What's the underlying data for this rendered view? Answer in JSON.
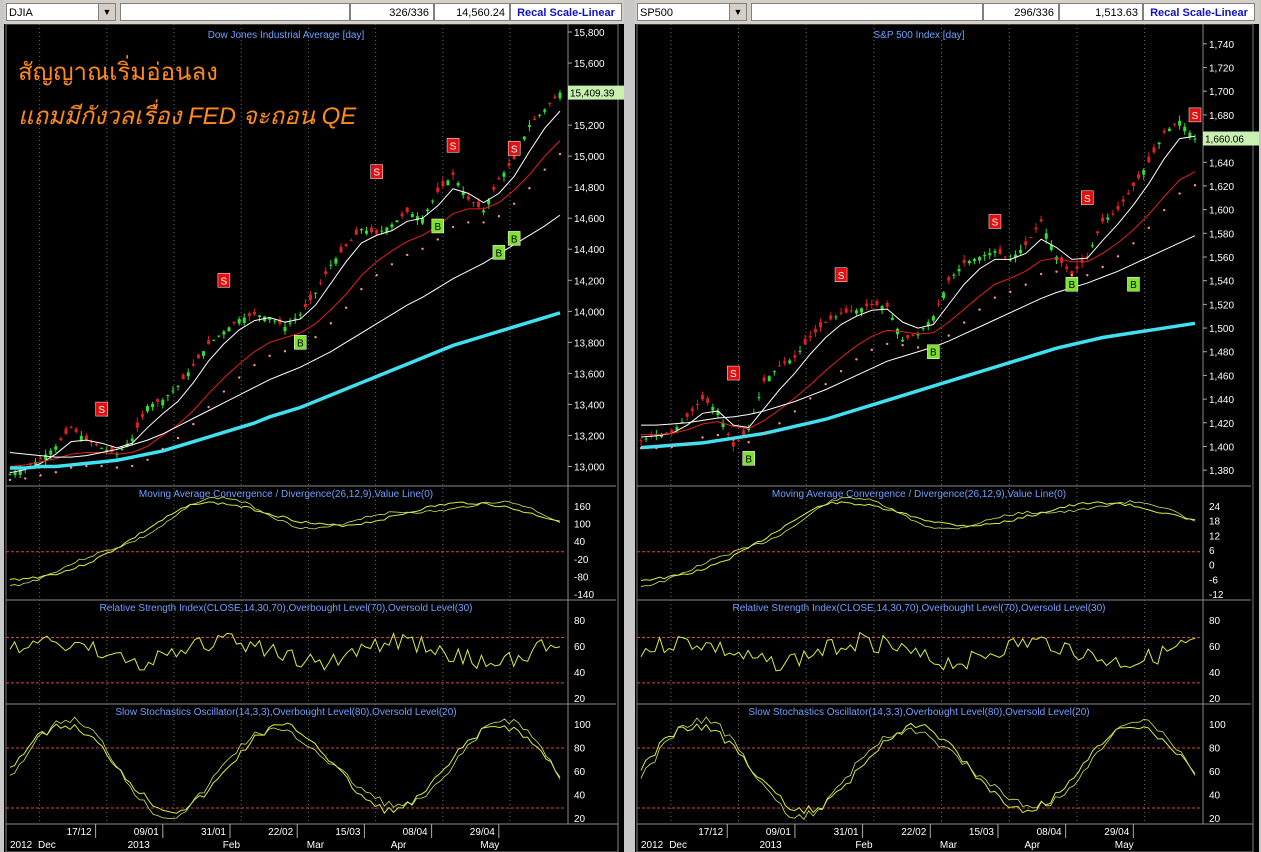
{
  "charts": [
    {
      "symbol": "DJIA",
      "counter": "326/336",
      "last_value": "14,560.24",
      "recal_label": "Recal Scale-Linear",
      "title": "Dow Jones Industrial Average [day]",
      "overlay_text": [
        "สัญญาณเริ่มอ่อนลง",
        "แถมมีกังวลเรื่อง FED จะถอน QE"
      ],
      "current_price_label": "15,409.39",
      "y_ticks": [
        "15,800",
        "15,600",
        "15,400",
        "15,200",
        "15,000",
        "14,800",
        "14,600",
        "14,400",
        "14,200",
        "14,000",
        "13,800",
        "13,600",
        "13,400",
        "13,200",
        "13,000"
      ],
      "macd_title": "Moving Average Convergence / Divergence(26,12,9),Value Line(0)",
      "macd_ticks": [
        "160",
        "100",
        "40",
        "-20",
        "-80",
        "-140"
      ],
      "rsi_title": "Relative Strength Index(CLOSE,14,30,70),Overbought Level(70),Oversold Level(30)",
      "rsi_ticks": [
        "80",
        "60",
        "40",
        "20"
      ],
      "stoch_title": "Slow Stochastics Oscillator(14,3,3),Overbought Level(80),Oversold Level(20)",
      "stoch_ticks": [
        "100",
        "80",
        "60",
        "40",
        "20"
      ],
      "x_dates": [
        "17/12",
        "09/01",
        "31/01",
        "22/02",
        "15/03",
        "08/04",
        "29/04"
      ],
      "x_months": [
        "2012",
        "Dec",
        "2013",
        "Feb",
        "Mar",
        "Apr",
        "May"
      ]
    },
    {
      "symbol": "SP500",
      "counter": "296/336",
      "last_value": "1,513.63",
      "recal_label": "Recal Scale-Linear",
      "title": "S&P 500 Index [day]",
      "current_price_label": "1,660.06",
      "y_ticks": [
        "1,740",
        "1,720",
        "1,700",
        "1,680",
        "1,660",
        "1,640",
        "1,620",
        "1,600",
        "1,580",
        "1,560",
        "1,540",
        "1,520",
        "1,500",
        "1,480",
        "1,460",
        "1,440",
        "1,420",
        "1,400",
        "1,380"
      ],
      "macd_title": "Moving Average Convergence / Divergence(26,12,9),Value Line(0)",
      "macd_ticks": [
        "24",
        "18",
        "12",
        "6",
        "0",
        "-6",
        "-12"
      ],
      "rsi_title": "Relative Strength Index(CLOSE,14,30,70),Overbought Level(70),Oversold Level(30)",
      "rsi_ticks": [
        "80",
        "60",
        "40",
        "20"
      ],
      "stoch_title": "Slow Stochastics Oscillator(14,3,3),Overbought Level(80),Oversold Level(20)",
      "stoch_ticks": [
        "100",
        "80",
        "60",
        "40",
        "20"
      ],
      "x_dates": [
        "17/12",
        "09/01",
        "31/01",
        "22/02",
        "15/03",
        "08/04",
        "29/04"
      ],
      "x_months": [
        "2012",
        "Dec",
        "2013",
        "Feb",
        "Mar",
        "Apr",
        "May"
      ]
    }
  ],
  "chart_data": [
    {
      "type": "line",
      "title": "Dow Jones Industrial Average [day]",
      "ylim": [
        12900,
        15800
      ],
      "series": [
        {
          "values": [
            12950,
            12990,
            13050,
            13130,
            13250,
            13170,
            13120,
            13080,
            13180,
            13390,
            13430,
            13520,
            13650,
            13790,
            13870,
            13950,
            13980,
            13960,
            13900,
            13980,
            14120,
            14300,
            14420,
            14530,
            14500,
            14560,
            14640,
            14600,
            14770,
            14880,
            14720,
            14650,
            14850,
            14980,
            15200,
            15300,
            15409
          ]
        },
        {
          "values": [
            12960,
            12980,
            13020,
            13080,
            13160,
            13170,
            13150,
            13120,
            13150,
            13250,
            13340,
            13420,
            13540,
            13680,
            13790,
            13880,
            13940,
            13960,
            13930,
            13950,
            14040,
            14180,
            14320,
            14440,
            14490,
            14520,
            14580,
            14600,
            14680,
            14790,
            14760,
            14700,
            14760,
            14870,
            15030,
            15180,
            15290
          ]
        },
        {
          "values": [
            13000,
            13010,
            13030,
            13050,
            13080,
            13090,
            13090,
            13080,
            13090,
            13130,
            13200,
            13270,
            13360,
            13470,
            13570,
            13660,
            13740,
            13800,
            13830,
            13860,
            13920,
            14010,
            14110,
            14230,
            14320,
            14390,
            14450,
            14490,
            14550,
            14630,
            14660,
            14660,
            14700,
            14780,
            14880,
            15000,
            15100
          ]
        },
        {
          "values": [
            13090,
            13080,
            13070,
            13060,
            13060,
            13070,
            13090,
            13110,
            13140,
            13170,
            13210,
            13260,
            13310,
            13360,
            13410,
            13460,
            13510,
            13560,
            13600,
            13640,
            13690,
            13740,
            13800,
            13860,
            13920,
            13980,
            14040,
            14090,
            14150,
            14210,
            14260,
            14310,
            14370,
            14430,
            14490,
            14550,
            14620
          ]
        },
        {
          "values": [
            12990,
            12990,
            13000,
            13000,
            13010,
            13020,
            13030,
            13040,
            13060,
            13080,
            13100,
            13130,
            13160,
            13190,
            13220,
            13250,
            13280,
            13320,
            13350,
            13380,
            13420,
            13460,
            13500,
            13540,
            13580,
            13620,
            13660,
            13700,
            13740,
            13780,
            13810,
            13840,
            13870,
            13900,
            13930,
            13960,
            13990
          ]
        }
      ],
      "markers": [
        {
          "label": "S",
          "x": 6,
          "y": 13370
        },
        {
          "label": "S",
          "x": 14,
          "y": 14200
        },
        {
          "label": "B",
          "x": 19,
          "y": 13800
        },
        {
          "label": "S",
          "x": 24,
          "y": 14900
        },
        {
          "label": "B",
          "x": 28,
          "y": 14550
        },
        {
          "label": "S",
          "x": 29,
          "y": 15070
        },
        {
          "label": "B",
          "x": 32,
          "y": 14380
        },
        {
          "label": "S",
          "x": 33,
          "y": 15050
        },
        {
          "label": "B",
          "x": 33,
          "y": 14470
        }
      ]
    },
    {
      "type": "line",
      "title": "S&P 500 Index [day]",
      "ylim": [
        1370,
        1750
      ],
      "series": [
        {
          "values": [
            1405,
            1410,
            1412,
            1425,
            1440,
            1430,
            1400,
            1415,
            1455,
            1468,
            1475,
            1492,
            1505,
            1512,
            1515,
            1520,
            1518,
            1490,
            1495,
            1510,
            1540,
            1555,
            1560,
            1565,
            1558,
            1570,
            1590,
            1560,
            1545,
            1560,
            1590,
            1600,
            1620,
            1640,
            1665,
            1675,
            1660
          ]
        },
        {
          "values": [
            1408,
            1409,
            1411,
            1418,
            1428,
            1430,
            1418,
            1416,
            1432,
            1448,
            1462,
            1478,
            1492,
            1503,
            1510,
            1515,
            1516,
            1505,
            1500,
            1503,
            1520,
            1537,
            1550,
            1558,
            1558,
            1563,
            1575,
            1568,
            1558,
            1559,
            1574,
            1588,
            1604,
            1622,
            1643,
            1660,
            1662
          ]
        },
        {
          "values": [
            1410,
            1410,
            1411,
            1414,
            1419,
            1421,
            1417,
            1415,
            1422,
            1431,
            1441,
            1452,
            1464,
            1475,
            1485,
            1493,
            1498,
            1497,
            1495,
            1496,
            1505,
            1516,
            1527,
            1537,
            1542,
            1548,
            1557,
            1559,
            1556,
            1556,
            1563,
            1572,
            1583,
            1596,
            1611,
            1625,
            1632
          ]
        },
        {
          "values": [
            1418,
            1418,
            1419,
            1420,
            1422,
            1424,
            1425,
            1427,
            1430,
            1434,
            1438,
            1443,
            1448,
            1454,
            1460,
            1466,
            1472,
            1476,
            1480,
            1484,
            1489,
            1495,
            1501,
            1507,
            1513,
            1519,
            1525,
            1530,
            1534,
            1538,
            1543,
            1548,
            1554,
            1560,
            1566,
            1572,
            1578
          ]
        },
        {
          "values": [
            1399,
            1400,
            1401,
            1402,
            1403,
            1405,
            1407,
            1409,
            1411,
            1414,
            1417,
            1420,
            1423,
            1427,
            1431,
            1435,
            1439,
            1443,
            1447,
            1451,
            1455,
            1459,
            1463,
            1467,
            1471,
            1475,
            1479,
            1483,
            1486,
            1489,
            1492,
            1494,
            1496,
            1498,
            1500,
            1502,
            1504
          ]
        }
      ],
      "markers": [
        {
          "label": "S",
          "x": 6,
          "y": 1462
        },
        {
          "label": "B",
          "x": 7,
          "y": 1390
        },
        {
          "label": "S",
          "x": 13,
          "y": 1545
        },
        {
          "label": "B",
          "x": 19,
          "y": 1480
        },
        {
          "label": "S",
          "x": 23,
          "y": 1590
        },
        {
          "label": "B",
          "x": 28,
          "y": 1537
        },
        {
          "label": "S",
          "x": 29,
          "y": 1610
        },
        {
          "label": "B",
          "x": 32,
          "y": 1537
        },
        {
          "label": "S",
          "x": 36,
          "y": 1680
        }
      ]
    }
  ],
  "colors": {
    "price": "#30e030",
    "ma_fast": "#ffffff",
    "ma_mid": "#e02020",
    "ma_slow": "#ffffff",
    "ma_long": "#40e0f0",
    "osc": "#d0f040",
    "ref": "#e04040",
    "title": "#6fa0ff",
    "overlay": "#ff8a1a",
    "grid": "#6a6a6a"
  }
}
